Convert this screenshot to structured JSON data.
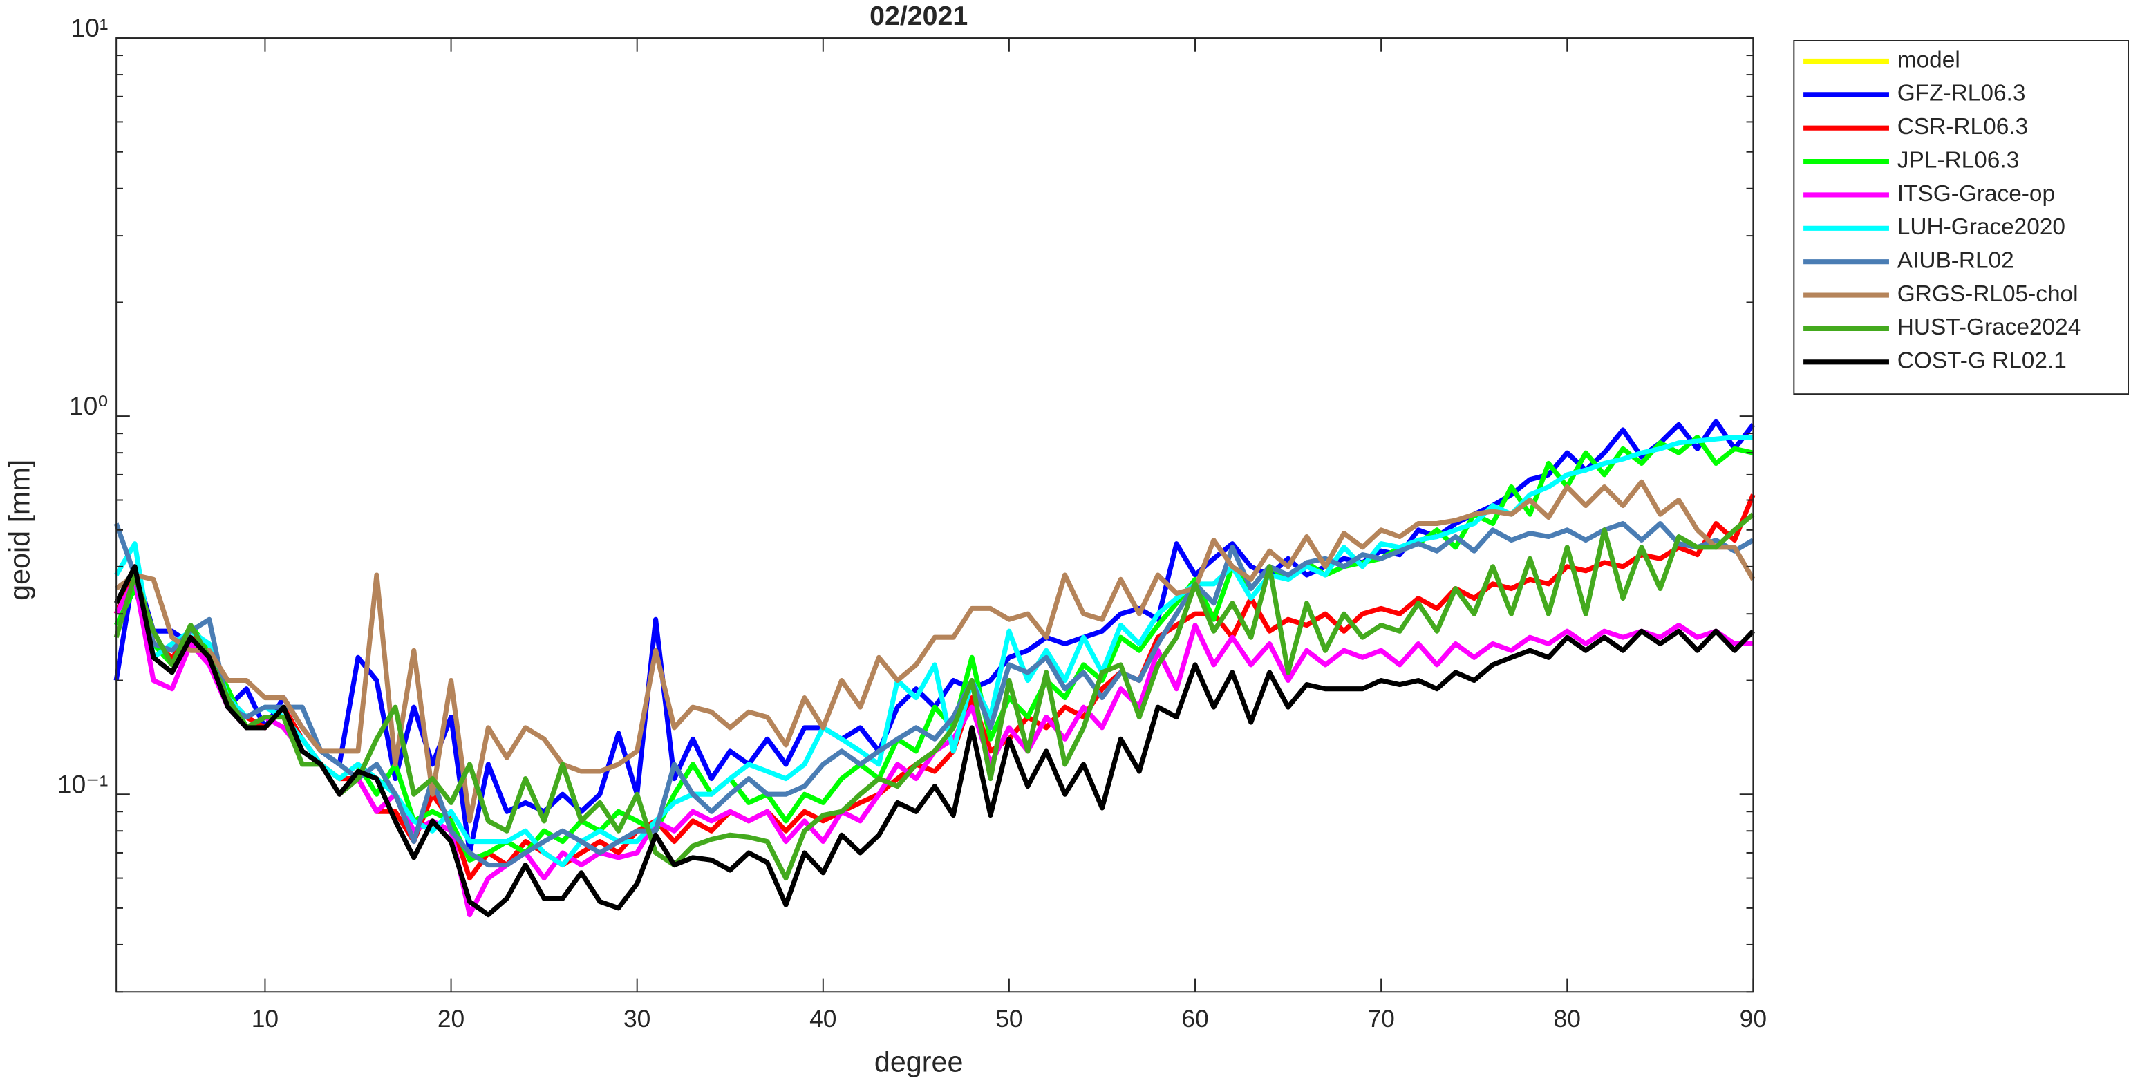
{
  "chart_data": {
    "type": "line",
    "title": "02/2021",
    "x_label": "degree",
    "y_label": "geoid [mm]",
    "log_y": true,
    "grid": false,
    "legend": "northeastoutside",
    "xlim": [
      2,
      90
    ],
    "xticks": [
      10,
      20,
      30,
      40,
      50,
      60,
      70,
      80,
      90
    ],
    "ylim": [
      0.03,
      10
    ],
    "yticks": [
      {
        "value": 0.1,
        "label": "10⁻¹"
      },
      {
        "value": 1,
        "label": "10⁰"
      },
      {
        "value": 10,
        "label": "10¹"
      }
    ],
    "x": [
      2,
      3,
      4,
      5,
      6,
      7,
      8,
      9,
      10,
      11,
      12,
      13,
      14,
      15,
      16,
      17,
      18,
      19,
      20,
      21,
      22,
      23,
      24,
      25,
      26,
      27,
      28,
      29,
      30,
      31,
      32,
      33,
      34,
      35,
      36,
      37,
      38,
      39,
      40,
      41,
      42,
      43,
      44,
      45,
      46,
      47,
      48,
      49,
      50,
      51,
      52,
      53,
      54,
      55,
      56,
      57,
      58,
      59,
      60,
      61,
      62,
      63,
      64,
      65,
      66,
      67,
      68,
      69,
      70,
      71,
      72,
      73,
      74,
      75,
      76,
      77,
      78,
      79,
      80,
      81,
      82,
      83,
      84,
      85,
      86,
      87,
      88,
      89,
      90
    ],
    "series": [
      {
        "name": "model",
        "color": "#ffff00",
        "values": [
          null,
          null,
          null,
          null,
          null,
          null,
          null,
          null,
          null,
          null,
          null,
          null,
          null,
          null,
          null,
          null,
          null,
          null,
          null,
          null,
          null,
          null,
          null,
          null,
          null,
          null,
          null,
          null,
          null,
          null,
          null,
          null,
          null,
          null,
          null,
          null,
          null,
          null,
          null,
          null,
          null,
          null,
          null,
          null,
          null,
          null,
          null,
          null,
          null,
          null,
          null,
          null,
          null,
          null,
          null,
          null,
          null,
          null,
          null,
          null,
          null,
          null,
          null,
          null,
          null,
          null,
          null,
          null,
          null,
          null,
          null,
          null,
          null,
          null,
          null,
          null,
          null,
          null,
          null,
          null,
          null,
          null,
          null,
          null,
          null,
          null,
          null,
          null,
          null
        ]
      },
      {
        "name": "GFZ-RL06.3",
        "color": "#0000ff",
        "values": [
          0.2,
          0.4,
          0.27,
          0.27,
          0.25,
          0.24,
          0.17,
          0.19,
          0.15,
          0.18,
          0.15,
          0.13,
          0.12,
          0.23,
          0.2,
          0.11,
          0.17,
          0.12,
          0.16,
          0.07,
          0.12,
          0.09,
          0.095,
          0.09,
          0.1,
          0.09,
          0.1,
          0.145,
          0.1,
          0.29,
          0.11,
          0.14,
          0.11,
          0.13,
          0.12,
          0.14,
          0.12,
          0.15,
          0.15,
          0.14,
          0.15,
          0.13,
          0.17,
          0.19,
          0.17,
          0.2,
          0.19,
          0.2,
          0.23,
          0.24,
          0.26,
          0.25,
          0.26,
          0.27,
          0.3,
          0.31,
          0.29,
          0.46,
          0.38,
          0.42,
          0.46,
          0.4,
          0.38,
          0.42,
          0.38,
          0.4,
          0.42,
          0.41,
          0.44,
          0.43,
          0.5,
          0.48,
          0.52,
          0.55,
          0.58,
          0.62,
          0.68,
          0.7,
          0.8,
          0.72,
          0.8,
          0.92,
          0.78,
          0.85,
          0.95,
          0.82,
          0.97,
          0.82,
          0.95
        ]
      },
      {
        "name": "CSR-RL06.3",
        "color": "#ff0000",
        "values": [
          0.3,
          0.4,
          0.25,
          0.23,
          0.26,
          0.24,
          0.18,
          0.16,
          0.15,
          0.17,
          0.14,
          0.12,
          0.11,
          0.11,
          0.09,
          0.09,
          0.075,
          0.1,
          0.085,
          0.06,
          0.07,
          0.065,
          0.075,
          0.07,
          0.065,
          0.07,
          0.075,
          0.07,
          0.08,
          0.085,
          0.075,
          0.085,
          0.08,
          0.09,
          0.085,
          0.09,
          0.08,
          0.09,
          0.085,
          0.09,
          0.095,
          0.1,
          0.11,
          0.12,
          0.115,
          0.13,
          0.18,
          0.13,
          0.14,
          0.16,
          0.15,
          0.17,
          0.16,
          0.19,
          0.21,
          0.2,
          0.26,
          0.28,
          0.3,
          0.3,
          0.26,
          0.33,
          0.27,
          0.29,
          0.28,
          0.3,
          0.27,
          0.3,
          0.31,
          0.3,
          0.33,
          0.31,
          0.35,
          0.33,
          0.36,
          0.35,
          0.37,
          0.36,
          0.4,
          0.39,
          0.41,
          0.4,
          0.43,
          0.42,
          0.45,
          0.43,
          0.52,
          0.47,
          0.62
        ]
      },
      {
        "name": "JPL-RL06.3",
        "color": "#00ff00",
        "values": [
          0.28,
          0.35,
          0.25,
          0.22,
          0.28,
          0.24,
          0.19,
          0.15,
          0.16,
          0.15,
          0.13,
          0.12,
          0.11,
          0.12,
          0.1,
          0.12,
          0.085,
          0.09,
          0.085,
          0.067,
          0.07,
          0.075,
          0.07,
          0.08,
          0.075,
          0.085,
          0.08,
          0.09,
          0.085,
          0.08,
          0.1,
          0.12,
          0.1,
          0.11,
          0.095,
          0.1,
          0.085,
          0.1,
          0.095,
          0.11,
          0.12,
          0.11,
          0.14,
          0.13,
          0.17,
          0.15,
          0.23,
          0.14,
          0.18,
          0.16,
          0.2,
          0.18,
          0.22,
          0.2,
          0.26,
          0.24,
          0.28,
          0.32,
          0.37,
          0.29,
          0.4,
          0.35,
          0.4,
          0.37,
          0.41,
          0.38,
          0.4,
          0.41,
          0.42,
          0.45,
          0.46,
          0.5,
          0.45,
          0.55,
          0.52,
          0.65,
          0.55,
          0.75,
          0.65,
          0.8,
          0.7,
          0.82,
          0.75,
          0.85,
          0.8,
          0.88,
          0.75,
          0.82,
          0.8
        ]
      },
      {
        "name": "ITSG-Grace-op",
        "color": "#ff00ff",
        "values": [
          0.3,
          0.37,
          0.2,
          0.19,
          0.25,
          0.22,
          0.17,
          0.15,
          0.16,
          0.15,
          0.13,
          0.12,
          0.1,
          0.11,
          0.09,
          0.1,
          0.08,
          0.085,
          0.08,
          0.048,
          0.06,
          0.065,
          0.07,
          0.06,
          0.07,
          0.065,
          0.07,
          0.068,
          0.07,
          0.085,
          0.08,
          0.09,
          0.085,
          0.09,
          0.085,
          0.09,
          0.075,
          0.085,
          0.075,
          0.09,
          0.085,
          0.1,
          0.12,
          0.11,
          0.13,
          0.14,
          0.17,
          0.12,
          0.15,
          0.13,
          0.16,
          0.14,
          0.17,
          0.15,
          0.19,
          0.17,
          0.24,
          0.19,
          0.28,
          0.22,
          0.26,
          0.22,
          0.25,
          0.2,
          0.24,
          0.22,
          0.24,
          0.23,
          0.24,
          0.22,
          0.25,
          0.22,
          0.25,
          0.23,
          0.25,
          0.24,
          0.26,
          0.25,
          0.27,
          0.25,
          0.27,
          0.26,
          0.27,
          0.26,
          0.28,
          0.26,
          0.27,
          0.25,
          0.25
        ]
      },
      {
        "name": "LUH-Grace2020",
        "color": "#00ffff",
        "values": [
          0.38,
          0.46,
          0.23,
          0.25,
          0.27,
          0.25,
          0.18,
          0.16,
          0.17,
          0.16,
          0.14,
          0.12,
          0.11,
          0.12,
          0.11,
          0.1,
          0.085,
          0.08,
          0.09,
          0.075,
          0.075,
          0.075,
          0.08,
          0.07,
          0.065,
          0.075,
          0.08,
          0.075,
          0.075,
          0.085,
          0.095,
          0.1,
          0.1,
          0.11,
          0.12,
          0.115,
          0.11,
          0.12,
          0.15,
          0.14,
          0.13,
          0.12,
          0.2,
          0.18,
          0.22,
          0.13,
          0.2,
          0.16,
          0.27,
          0.2,
          0.24,
          0.2,
          0.26,
          0.21,
          0.28,
          0.25,
          0.3,
          0.33,
          0.36,
          0.36,
          0.4,
          0.33,
          0.38,
          0.37,
          0.4,
          0.38,
          0.45,
          0.4,
          0.46,
          0.45,
          0.47,
          0.48,
          0.5,
          0.52,
          0.58,
          0.55,
          0.62,
          0.65,
          0.7,
          0.72,
          0.75,
          0.77,
          0.8,
          0.82,
          0.85,
          0.86,
          0.87,
          0.88,
          0.88
        ]
      },
      {
        "name": "AIUB-RL02",
        "color": "#4a7db4",
        "values": [
          0.52,
          0.38,
          0.25,
          0.24,
          0.27,
          0.29,
          0.17,
          0.16,
          0.17,
          0.17,
          0.17,
          0.13,
          0.12,
          0.11,
          0.12,
          0.1,
          0.075,
          0.11,
          0.08,
          0.07,
          0.065,
          0.065,
          0.07,
          0.075,
          0.08,
          0.075,
          0.07,
          0.075,
          0.08,
          0.08,
          0.12,
          0.1,
          0.09,
          0.1,
          0.11,
          0.1,
          0.1,
          0.105,
          0.12,
          0.13,
          0.12,
          0.13,
          0.14,
          0.15,
          0.14,
          0.16,
          0.2,
          0.15,
          0.22,
          0.21,
          0.23,
          0.19,
          0.21,
          0.18,
          0.21,
          0.2,
          0.25,
          0.3,
          0.36,
          0.32,
          0.45,
          0.35,
          0.4,
          0.38,
          0.41,
          0.42,
          0.4,
          0.43,
          0.42,
          0.44,
          0.46,
          0.44,
          0.48,
          0.44,
          0.5,
          0.47,
          0.49,
          0.48,
          0.5,
          0.47,
          0.5,
          0.52,
          0.47,
          0.52,
          0.46,
          0.45,
          0.47,
          0.44,
          0.47
        ]
      },
      {
        "name": "GRGS-RL05-chol",
        "color": "#b5845a",
        "values": [
          0.35,
          0.38,
          0.37,
          0.26,
          0.24,
          0.24,
          0.2,
          0.2,
          0.18,
          0.18,
          0.15,
          0.13,
          0.13,
          0.13,
          0.38,
          0.12,
          0.24,
          0.1,
          0.2,
          0.085,
          0.15,
          0.125,
          0.15,
          0.14,
          0.12,
          0.115,
          0.115,
          0.12,
          0.13,
          0.24,
          0.15,
          0.17,
          0.165,
          0.15,
          0.165,
          0.16,
          0.135,
          0.18,
          0.15,
          0.2,
          0.17,
          0.23,
          0.2,
          0.22,
          0.26,
          0.26,
          0.31,
          0.31,
          0.29,
          0.3,
          0.26,
          0.38,
          0.3,
          0.29,
          0.37,
          0.3,
          0.38,
          0.34,
          0.35,
          0.47,
          0.4,
          0.37,
          0.44,
          0.4,
          0.48,
          0.4,
          0.49,
          0.45,
          0.5,
          0.48,
          0.52,
          0.52,
          0.53,
          0.55,
          0.56,
          0.55,
          0.6,
          0.54,
          0.65,
          0.58,
          0.65,
          0.58,
          0.67,
          0.55,
          0.6,
          0.5,
          0.45,
          0.45,
          0.37
        ]
      },
      {
        "name": "HUST-Grace2024",
        "color": "#44aa1e",
        "values": [
          0.26,
          0.38,
          0.27,
          0.22,
          0.28,
          0.23,
          0.18,
          0.15,
          0.16,
          0.16,
          0.12,
          0.12,
          0.1,
          0.11,
          0.14,
          0.17,
          0.1,
          0.11,
          0.095,
          0.12,
          0.085,
          0.08,
          0.11,
          0.085,
          0.12,
          0.085,
          0.095,
          0.08,
          0.1,
          0.07,
          0.065,
          0.073,
          0.076,
          0.078,
          0.077,
          0.075,
          0.06,
          0.08,
          0.088,
          0.09,
          0.1,
          0.11,
          0.105,
          0.12,
          0.13,
          0.15,
          0.2,
          0.11,
          0.2,
          0.13,
          0.21,
          0.12,
          0.15,
          0.21,
          0.22,
          0.16,
          0.22,
          0.26,
          0.36,
          0.27,
          0.32,
          0.26,
          0.4,
          0.21,
          0.32,
          0.24,
          0.3,
          0.26,
          0.28,
          0.27,
          0.32,
          0.27,
          0.35,
          0.3,
          0.4,
          0.3,
          0.42,
          0.3,
          0.45,
          0.3,
          0.5,
          0.33,
          0.45,
          0.35,
          0.48,
          0.45,
          0.45,
          0.5,
          0.55
        ]
      },
      {
        "name": "COST-G RL02.1",
        "color": "#000000",
        "values": [
          0.32,
          0.4,
          0.23,
          0.21,
          0.26,
          0.23,
          0.17,
          0.15,
          0.15,
          0.17,
          0.13,
          0.12,
          0.1,
          0.115,
          0.11,
          0.085,
          0.068,
          0.085,
          0.075,
          0.052,
          0.048,
          0.053,
          0.065,
          0.053,
          0.053,
          0.062,
          0.052,
          0.05,
          0.058,
          0.078,
          0.065,
          0.068,
          0.067,
          0.063,
          0.07,
          0.066,
          0.051,
          0.07,
          0.062,
          0.078,
          0.07,
          0.078,
          0.095,
          0.09,
          0.105,
          0.088,
          0.15,
          0.088,
          0.14,
          0.105,
          0.13,
          0.1,
          0.12,
          0.092,
          0.14,
          0.115,
          0.17,
          0.16,
          0.22,
          0.17,
          0.21,
          0.155,
          0.21,
          0.17,
          0.195,
          0.19,
          0.19,
          0.19,
          0.2,
          0.195,
          0.2,
          0.19,
          0.21,
          0.2,
          0.22,
          0.23,
          0.24,
          0.23,
          0.26,
          0.24,
          0.26,
          0.24,
          0.27,
          0.25,
          0.27,
          0.24,
          0.27,
          0.24,
          0.27
        ]
      }
    ]
  }
}
